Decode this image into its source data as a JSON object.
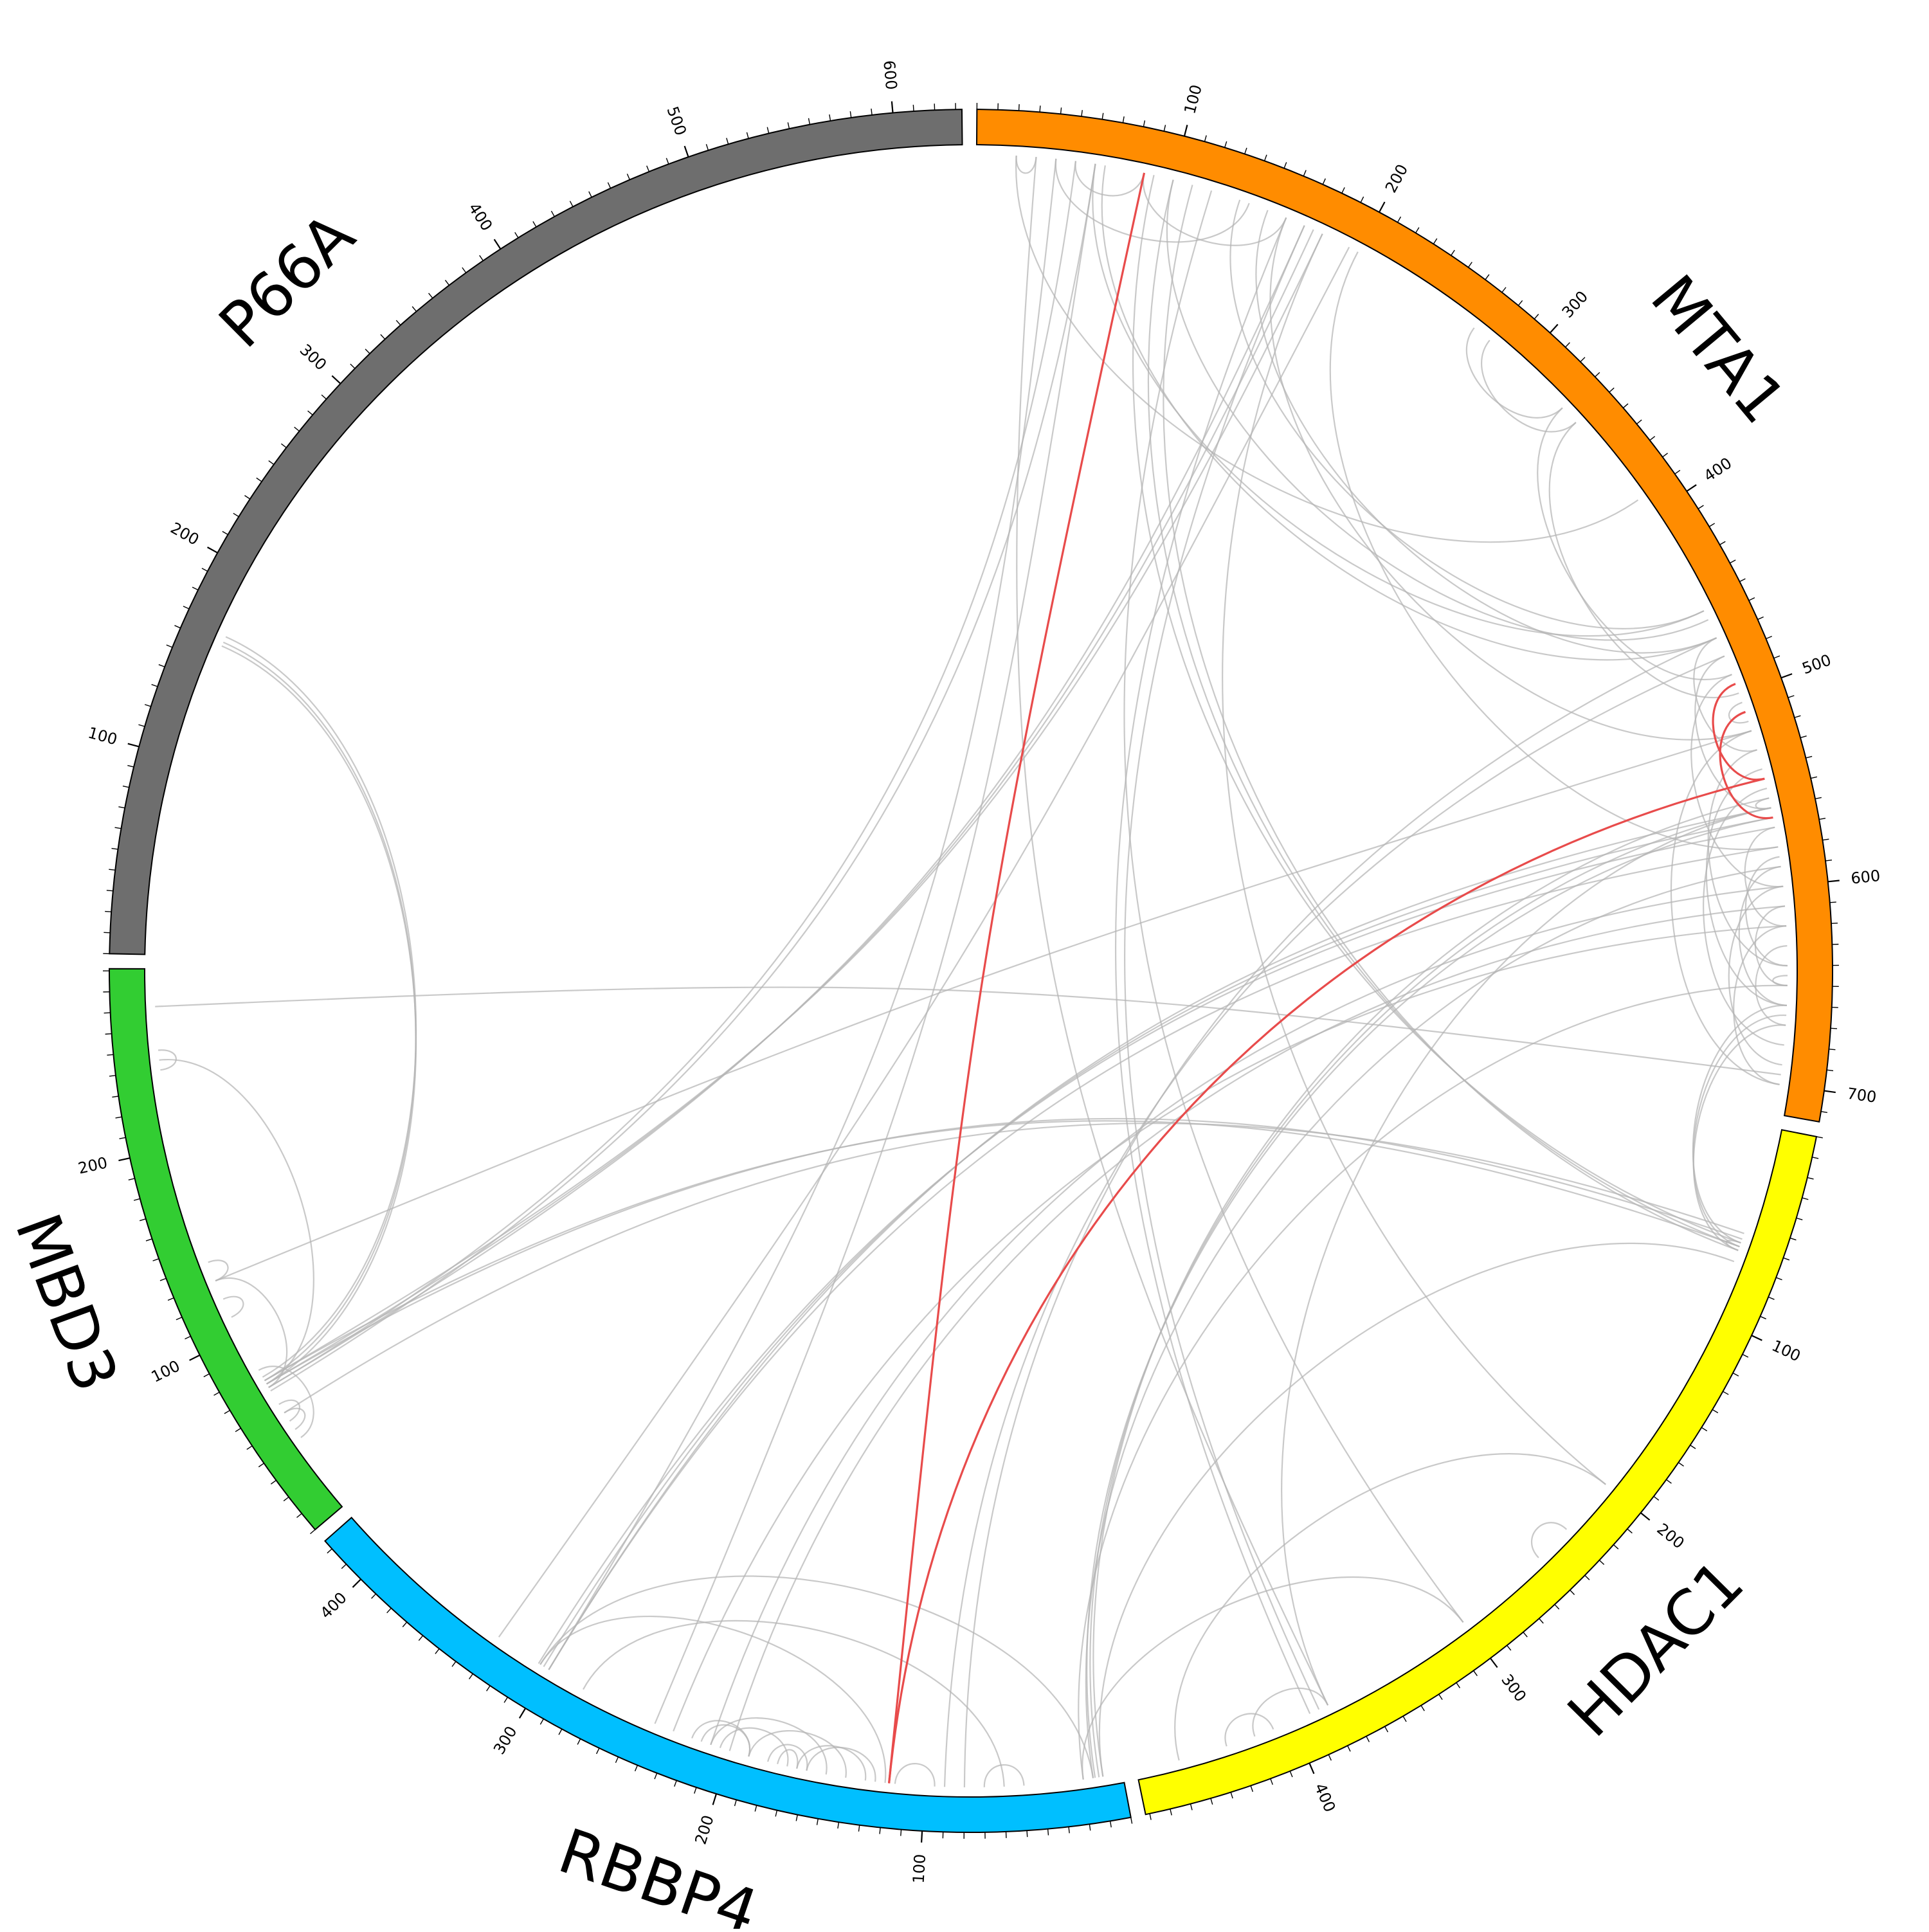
{
  "diagram": {
    "type": "circos-crosslink",
    "proteins": [
      {
        "name": "MTA1",
        "length": 715,
        "color": "#ff8c00",
        "ticks": [
          "100",
          "200",
          "300",
          "400",
          "500",
          "600",
          "700"
        ]
      },
      {
        "name": "HDAC1",
        "length": 482,
        "color": "#ffff00",
        "ticks": [
          "100",
          "200",
          "300",
          "400"
        ]
      },
      {
        "name": "RBBP4",
        "length": 425,
        "color": "#00bfff",
        "ticks": [
          "100",
          "200",
          "300",
          "400"
        ]
      },
      {
        "name": "MBD3",
        "length": 291,
        "color": "#32cd32",
        "ticks": [
          "100",
          "200"
        ]
      },
      {
        "name": "P66A",
        "length": 633,
        "color": "#6e6e6e",
        "ticks": [
          "100",
          "200",
          "300",
          "400",
          "500",
          "600"
        ]
      }
    ],
    "link_colors": {
      "default": "#b4b4b4",
      "highlight": "#e84b4b"
    },
    "links": [
      {
        "a": "MTA1",
        "ap": 85,
        "b": "RBBP4",
        "bp": 118,
        "h": true
      },
      {
        "a": "MTA1",
        "ap": 545,
        "b": "RBBP4",
        "bp": 118,
        "h": true
      },
      {
        "a": "MTA1",
        "ap": 495,
        "b": "MTA1",
        "bp": 545,
        "h": true
      },
      {
        "a": "MTA1",
        "ap": 510,
        "b": "MTA1",
        "bp": 565,
        "h": true
      },
      {
        "a": "MTA1",
        "ap": 135,
        "b": "MTA1",
        "bp": 455
      },
      {
        "a": "MTA1",
        "ap": 150,
        "b": "MTA1",
        "bp": 470
      },
      {
        "a": "MTA1",
        "ap": 160,
        "b": "MTA1",
        "bp": 520
      },
      {
        "a": "MTA1",
        "ap": 60,
        "b": "MTA1",
        "bp": 455
      },
      {
        "a": "MTA1",
        "ap": 65,
        "b": "MTA1",
        "bp": 470
      },
      {
        "a": "MTA1",
        "ap": 50,
        "b": "MTA1",
        "bp": 85
      },
      {
        "a": "MTA1",
        "ap": 40,
        "b": "MTA1",
        "bp": 140
      },
      {
        "a": "MTA1",
        "ap": 85,
        "b": "MTA1",
        "bp": 160
      },
      {
        "a": "MTA1",
        "ap": 270,
        "b": "MTA1",
        "bp": 330
      },
      {
        "a": "MTA1",
        "ap": 280,
        "b": "MTA1",
        "bp": 340
      },
      {
        "a": "MTA1",
        "ap": 330,
        "b": "MTA1",
        "bp": 490
      },
      {
        "a": "MTA1",
        "ap": 340,
        "b": "MTA1",
        "bp": 500
      },
      {
        "a": "MTA1",
        "ap": 20,
        "b": "MTA1",
        "bp": 30
      },
      {
        "a": "MTA1",
        "ap": 20,
        "b": "MTA1",
        "bp": 390
      },
      {
        "a": "MTA1",
        "ap": 100,
        "b": "MTA1",
        "bp": 460
      },
      {
        "a": "MTA1",
        "ap": 200,
        "b": "MTA1",
        "bp": 580
      },
      {
        "a": "MTA1",
        "ap": 470,
        "b": "MTA1",
        "bp": 530
      },
      {
        "a": "MTA1",
        "ap": 480,
        "b": "MTA1",
        "bp": 560
      },
      {
        "a": "MTA1",
        "ap": 490,
        "b": "MTA1",
        "bp": 600
      },
      {
        "a": "MTA1",
        "ap": 530,
        "b": "MTA1",
        "bp": 640
      },
      {
        "a": "MTA1",
        "ap": 540,
        "b": "MTA1",
        "bp": 660
      },
      {
        "a": "MTA1",
        "ap": 550,
        "b": "MTA1",
        "bp": 680
      },
      {
        "a": "MTA1",
        "ap": 570,
        "b": "MTA1",
        "bp": 620
      },
      {
        "a": "MTA1",
        "ap": 585,
        "b": "MTA1",
        "bp": 640
      },
      {
        "a": "MTA1",
        "ap": 590,
        "b": "MTA1",
        "bp": 660
      },
      {
        "a": "MTA1",
        "ap": 600,
        "b": "MTA1",
        "bp": 690
      },
      {
        "a": "MTA1",
        "ap": 610,
        "b": "MTA1",
        "bp": 650
      },
      {
        "a": "MTA1",
        "ap": 620,
        "b": "MTA1",
        "bp": 700
      },
      {
        "a": "MTA1",
        "ap": 630,
        "b": "MTA1",
        "bp": 670
      },
      {
        "a": "MTA1",
        "ap": 520,
        "b": "MTA1",
        "bp": 700
      },
      {
        "a": "MTA1",
        "ap": 505,
        "b": "MTA1",
        "bp": 515
      },
      {
        "a": "MTA1",
        "ap": 555,
        "b": "MTA1",
        "bp": 560
      },
      {
        "a": "MTA1",
        "ap": 645,
        "b": "MTA1",
        "bp": 650
      },
      {
        "a": "MTA1",
        "ap": 560,
        "b": "HDAC1",
        "bp": 380
      },
      {
        "a": "MTA1",
        "ap": 660,
        "b": "HDAC1",
        "bp": 60
      },
      {
        "a": "MTA1",
        "ap": 665,
        "b": "HDAC1",
        "bp": 62
      },
      {
        "a": "MTA1",
        "ap": 670,
        "b": "HDAC1",
        "bp": 64
      },
      {
        "a": "MTA1",
        "ap": 90,
        "b": "HDAC1",
        "bp": 60
      },
      {
        "a": "MTA1",
        "ap": 100,
        "b": "HDAC1",
        "bp": 62
      },
      {
        "a": "MTA1",
        "ap": 110,
        "b": "HDAC1",
        "bp": 64
      },
      {
        "a": "MTA1",
        "ap": 180,
        "b": "HDAC1",
        "bp": 200
      },
      {
        "a": "MTA1",
        "ap": 30,
        "b": "HDAC1",
        "bp": 380
      },
      {
        "a": "MTA1",
        "ap": 160,
        "b": "HDAC1",
        "bp": 390
      },
      {
        "a": "MTA1",
        "ap": 170,
        "b": "HDAC1",
        "bp": 385
      },
      {
        "a": "MTA1",
        "ap": 120,
        "b": "HDAC1",
        "bp": 300
      },
      {
        "a": "MTA1",
        "ap": 560,
        "b": "RBBP4",
        "bp": 300
      },
      {
        "a": "MTA1",
        "ap": 565,
        "b": "RBBP4",
        "bp": 303
      },
      {
        "a": "MTA1",
        "ap": 570,
        "b": "RBBP4",
        "bp": 306
      },
      {
        "a": "MTA1",
        "ap": 600,
        "b": "RBBP4",
        "bp": 210
      },
      {
        "a": "MTA1",
        "ap": 610,
        "b": "RBBP4",
        "bp": 200
      },
      {
        "a": "MTA1",
        "ap": 620,
        "b": "RBBP4",
        "bp": 230
      },
      {
        "a": "MTA1",
        "ap": 555,
        "b": "RBBP4",
        "bp": 10
      },
      {
        "a": "MTA1",
        "ap": 560,
        "b": "RBBP4",
        "bp": 12
      },
      {
        "a": "MTA1",
        "ap": 565,
        "b": "RBBP4",
        "bp": 14
      },
      {
        "a": "MTA1",
        "ap": 480,
        "b": "RBBP4",
        "bp": 90
      },
      {
        "a": "MTA1",
        "ap": 470,
        "b": "RBBP4",
        "bp": 80
      },
      {
        "a": "MTA1",
        "ap": 650,
        "b": "RBBP4",
        "bp": 20
      },
      {
        "a": "MTA1",
        "ap": 580,
        "b": "RBBP4",
        "bp": 300
      },
      {
        "a": "MTA1",
        "ap": 40,
        "b": "RBBP4",
        "bp": 300
      },
      {
        "a": "MTA1",
        "ap": 60,
        "b": "RBBP4",
        "bp": 240
      },
      {
        "a": "MTA1",
        "ap": 195,
        "b": "RBBP4",
        "bp": 330
      },
      {
        "a": "MTA1",
        "ap": 590,
        "b": "RBBP4",
        "bp": 15
      },
      {
        "a": "MTA1",
        "ap": 170,
        "b": "MBD3",
        "bp": 70
      },
      {
        "a": "MTA1",
        "ap": 175,
        "b": "MBD3",
        "bp": 72
      },
      {
        "a": "MTA1",
        "ap": 180,
        "b": "MBD3",
        "bp": 74
      },
      {
        "a": "MTA1",
        "ap": 520,
        "b": "MBD3",
        "bp": 130
      },
      {
        "a": "MTA1",
        "ap": 50,
        "b": "MBD3",
        "bp": 70
      },
      {
        "a": "MTA1",
        "ap": 60,
        "b": "MBD3",
        "bp": 68
      },
      {
        "a": "MTA1",
        "ap": 695,
        "b": "MBD3",
        "bp": 272
      },
      {
        "a": "HDAC1",
        "bp": 55,
        "a2": "",
        "ap": 55,
        "b": "MBD3",
        "bp2": 0
      },
      {
        "a": "HDAC1",
        "ap": 58,
        "b": "MBD3",
        "bp": 72
      },
      {
        "a": "HDAC1",
        "ap": 62,
        "b": "MBD3",
        "bp": 74
      },
      {
        "a": "HDAC1",
        "ap": 70,
        "b": "RBBP4",
        "bp": 10
      },
      {
        "a": "HDAC1",
        "ap": 300,
        "b": "RBBP4",
        "bp": 20
      },
      {
        "a": "HDAC1",
        "ap": 410,
        "b": "HDAC1",
        "bp": 435
      },
      {
        "a": "HDAC1",
        "ap": 380,
        "b": "HDAC1",
        "bp": 420
      },
      {
        "a": "HDAC1",
        "ap": 200,
        "b": "HDAC1",
        "bp": 460
      },
      {
        "a": "HDAC1",
        "ap": 230,
        "b": "HDAC1",
        "bp": 250
      },
      {
        "a": "HDAC1",
        "ap": 60,
        "b": "HDAC1",
        "bp": 64
      },
      {
        "a": "RBBP4",
        "ap": 125,
        "b": "RBBP4",
        "bp": 160
      },
      {
        "a": "RBBP4",
        "ap": 130,
        "b": "RBBP4",
        "bp": 165
      },
      {
        "a": "RBBP4",
        "ap": 140,
        "b": "RBBP4",
        "bp": 190
      },
      {
        "a": "RBBP4",
        "ap": 150,
        "b": "RBBP4",
        "bp": 210
      },
      {
        "a": "RBBP4",
        "ap": 160,
        "b": "RBBP4",
        "bp": 180
      },
      {
        "a": "RBBP4",
        "ap": 170,
        "b": "RBBP4",
        "bp": 205
      },
      {
        "a": "RBBP4",
        "ap": 165,
        "b": "RBBP4",
        "bp": 175
      },
      {
        "a": "RBBP4",
        "ap": 190,
        "b": "RBBP4",
        "bp": 220
      },
      {
        "a": "RBBP4",
        "ap": 120,
        "b": "RBBP4",
        "bp": 305
      },
      {
        "a": "RBBP4",
        "ap": 60,
        "b": "RBBP4",
        "bp": 280
      },
      {
        "a": "RBBP4",
        "ap": 50,
        "b": "RBBP4",
        "bp": 70
      },
      {
        "a": "RBBP4",
        "ap": 190,
        "b": "RBBP4",
        "bp": 215
      },
      {
        "a": "RBBP4",
        "ap": 15,
        "b": "RBBP4",
        "bp": 305
      },
      {
        "a": "RBBP4",
        "ap": 95,
        "b": "RBBP4",
        "bp": 115
      },
      {
        "a": "MBD3",
        "ap": 70,
        "b": "MBD3",
        "bp": 130
      },
      {
        "a": "MBD3",
        "ap": 72,
        "b": "MBD3",
        "bp": 245
      },
      {
        "a": "MBD3",
        "ap": 130,
        "b": "MBD3",
        "bp": 140
      },
      {
        "a": "MBD3",
        "ap": 50,
        "b": "MBD3",
        "bp": 60
      },
      {
        "a": "MBD3",
        "ap": 45,
        "b": "MBD3",
        "bp": 55
      },
      {
        "a": "MBD3",
        "ap": 240,
        "b": "MBD3",
        "bp": 250
      },
      {
        "a": "MBD3",
        "ap": 110,
        "b": "MBD3",
        "bp": 120
      },
      {
        "a": "MBD3",
        "ap": 40,
        "b": "MBD3",
        "bp": 80
      },
      {
        "a": "P66A",
        "ap": 160,
        "b": "MBD3",
        "bp": 72
      },
      {
        "a": "P66A",
        "ap": 162,
        "b": "MBD3",
        "bp": 74
      },
      {
        "a": "P66A",
        "ap": 165,
        "b": "MBD3",
        "bp": 76
      }
    ]
  }
}
